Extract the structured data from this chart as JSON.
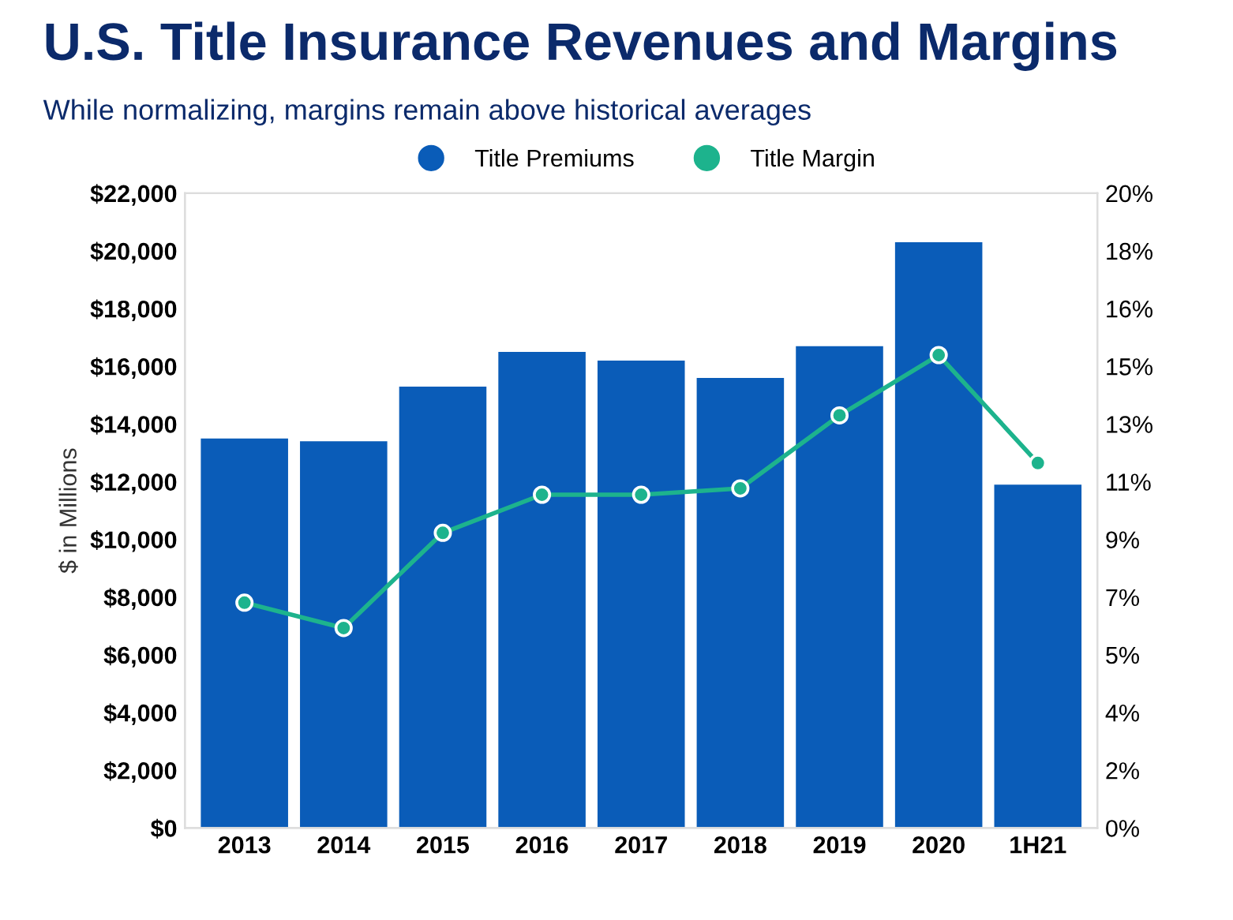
{
  "chart_data": {
    "type": "bar",
    "title": "U.S. Title Insurance Revenues and Margins",
    "subtitle": "While normalizing, margins remain above historical averages",
    "ylabel": "$ in Millions",
    "categories": [
      "2013",
      "2014",
      "2015",
      "2016",
      "2017",
      "2018",
      "2019",
      "2020",
      "1H21"
    ],
    "series": [
      {
        "name": "Title Premiums",
        "color": "#0a5cb8",
        "values": [
          13500,
          13400,
          15300,
          16500,
          16200,
          15600,
          16700,
          20300,
          11900
        ]
      },
      {
        "name": "Title Margin",
        "type": "line",
        "axis": "y2",
        "color": "#1db38d",
        "marker": "circle",
        "values": [
          7.1,
          6.3,
          9.3,
          10.5,
          10.5,
          10.7,
          13.0,
          14.9,
          11.5
        ]
      }
    ],
    "ylim": [
      0,
      22000
    ],
    "yticks": [
      {
        "value": 0,
        "label": "$0"
      },
      {
        "value": 2000,
        "label": "$2,000"
      },
      {
        "value": 4000,
        "label": "$4,000"
      },
      {
        "value": 6000,
        "label": "$6,000"
      },
      {
        "value": 8000,
        "label": "$8,000"
      },
      {
        "value": 10000,
        "label": "$10,000"
      },
      {
        "value": 12000,
        "label": "$12,000"
      },
      {
        "value": 14000,
        "label": "$14,000"
      },
      {
        "value": 16000,
        "label": "$16,000"
      },
      {
        "value": 18000,
        "label": "$18,000"
      },
      {
        "value": 20000,
        "label": "$20,000"
      },
      {
        "value": 22000,
        "label": "$22,000"
      }
    ],
    "y2lim": [
      0,
      20
    ],
    "y2ticks": [
      {
        "value": 0,
        "label": "0%"
      },
      {
        "value": 1.818,
        "label": "2%"
      },
      {
        "value": 3.636,
        "label": "4%"
      },
      {
        "value": 5.455,
        "label": "5%"
      },
      {
        "value": 7.273,
        "label": "7%"
      },
      {
        "value": 9.091,
        "label": "9%"
      },
      {
        "value": 10.909,
        "label": "11%"
      },
      {
        "value": 12.727,
        "label": "13%"
      },
      {
        "value": 14.545,
        "label": "15%"
      },
      {
        "value": 16.364,
        "label": "16%"
      },
      {
        "value": 18.182,
        "label": "18%"
      },
      {
        "value": 20,
        "label": "20%"
      }
    ],
    "legend": "top",
    "grid": false
  }
}
